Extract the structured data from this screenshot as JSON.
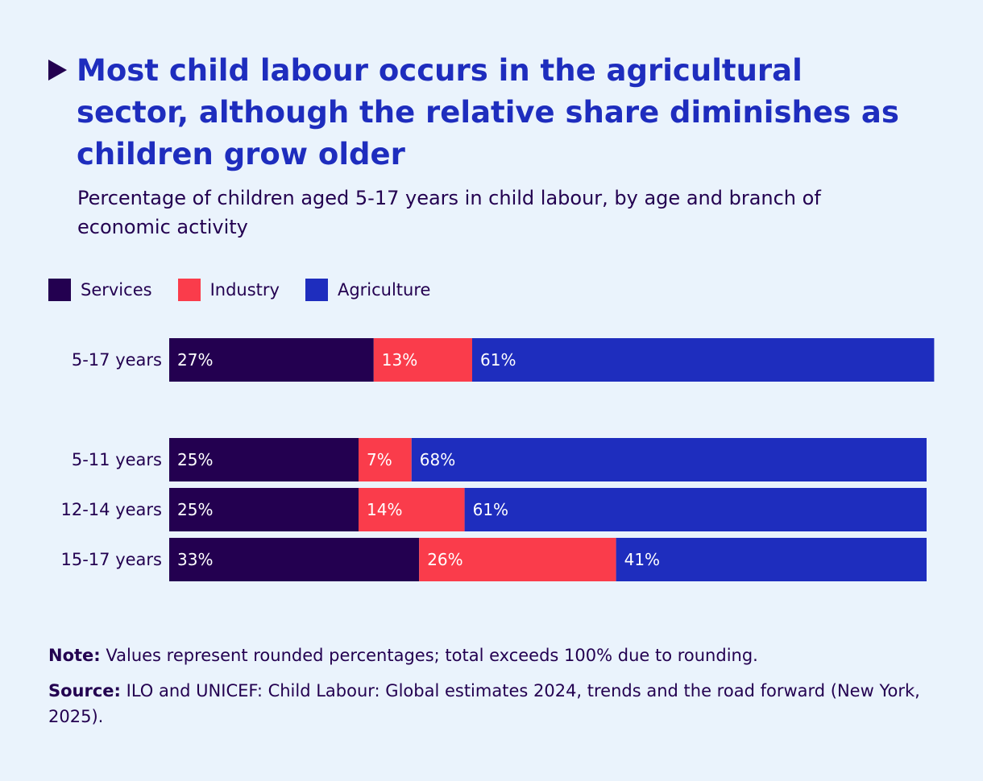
{
  "title": "Most child labour occurs in the agricultural  sector, although the relative share diminishes as children grow older",
  "subtitle": "Percentage of children aged 5-17 years in child labour, by age and branch of economic activity",
  "note": {
    "label": "Note:",
    "text": "Values represent rounded percentages; total exceeds 100% due to rounding."
  },
  "source": {
    "label": "Source:",
    "text": "ILO and UNICEF: Child Labour: Global estimates 2024, trends and the road forward (New York, 2025)."
  },
  "colors": {
    "background": "#eaf3fc",
    "title": "#1e2dbe",
    "text": "#230050",
    "services": "#230050",
    "industry": "#fa3c4b",
    "agriculture": "#1e2dbe",
    "bar_label": "#ffffff"
  },
  "chart_data": {
    "type": "bar",
    "orientation": "horizontal",
    "stacked": true,
    "categories": [
      "5-17 years",
      "5-11 years",
      "12-14 years",
      "15-17 years"
    ],
    "series": [
      {
        "name": "Services",
        "color": "#230050",
        "values": [
          27,
          25,
          25,
          33
        ],
        "labels": [
          "27%",
          "25%",
          "25%",
          "33%"
        ]
      },
      {
        "name": "Industry",
        "color": "#fa3c4b",
        "values": [
          13,
          7,
          14,
          26
        ],
        "labels": [
          "13%",
          "7%",
          "14%",
          "26%"
        ]
      },
      {
        "name": "Agriculture",
        "color": "#1e2dbe",
        "values": [
          61,
          68,
          61,
          41
        ],
        "labels": [
          "61%",
          "68%",
          "61%",
          "41%"
        ]
      }
    ],
    "xlim": [
      0,
      100
    ],
    "legend_position": "top-left",
    "grid": false
  }
}
